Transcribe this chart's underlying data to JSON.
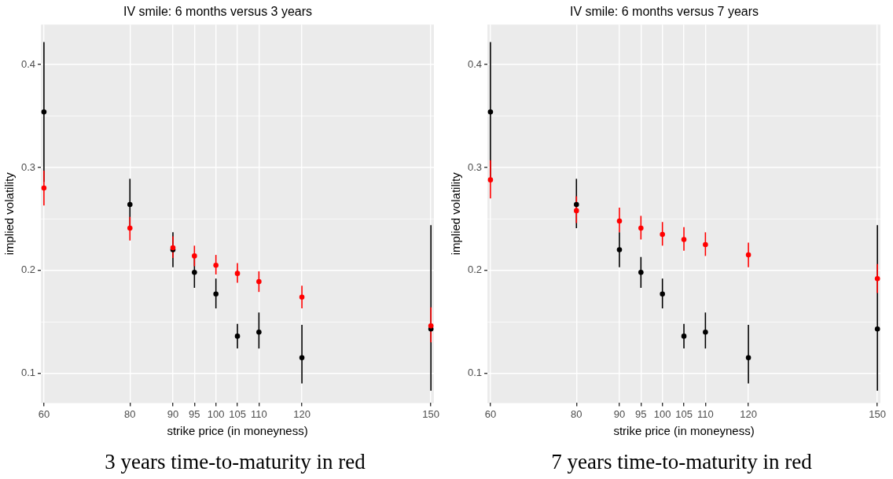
{
  "chart_data": [
    {
      "type": "scatter",
      "title": "IV smile: 6 months versus 3 years",
      "xlabel": "strike price (in moneyness)",
      "ylabel": "implied volatility",
      "annotations": [
        "3 years time-to-maturity in red"
      ],
      "x": [
        60,
        80,
        90,
        95,
        100,
        105,
        110,
        120,
        150
      ],
      "xlim": [
        59.3,
        150.7
      ],
      "xticks": [
        60,
        80,
        90,
        95,
        100,
        105,
        110,
        120,
        150
      ],
      "ylim": [
        0.071,
        0.439
      ],
      "yticks": [
        0.1,
        {
          "value": 0.15,
          "label": null
        },
        0.2,
        {
          "value": 0.25,
          "label": null
        },
        0.3,
        {
          "value": 0.35,
          "label": null
        },
        0.4
      ],
      "grid": true,
      "legend": false,
      "marker": "circle",
      "series": [
        {
          "color": "#000000",
          "values": [
            0.354,
            0.264,
            0.22,
            0.198,
            0.177,
            0.136,
            0.14,
            0.115,
            0.143
          ],
          "errors": [
            [
              0.286,
              0.422
            ],
            [
              0.241,
              0.289
            ],
            [
              0.203,
              0.237
            ],
            [
              0.183,
              0.213
            ],
            [
              0.163,
              0.192
            ],
            [
              0.124,
              0.148
            ],
            [
              0.124,
              0.159
            ],
            [
              0.09,
              0.147
            ],
            [
              0.083,
              0.244
            ]
          ]
        },
        {
          "color": "#ff0000",
          "values": [
            0.28,
            0.241,
            0.222,
            0.214,
            0.205,
            0.197,
            0.189,
            0.174,
            0.146
          ],
          "errors": [
            [
              0.263,
              0.297
            ],
            [
              0.229,
              0.252
            ],
            [
              0.212,
              0.233
            ],
            [
              0.204,
              0.224
            ],
            [
              0.196,
              0.215
            ],
            [
              0.188,
              0.207
            ],
            [
              0.179,
              0.199
            ],
            [
              0.163,
              0.185
            ],
            [
              0.13,
              0.164
            ]
          ]
        }
      ]
    },
    {
      "type": "scatter",
      "title": "IV smile: 6 months versus 7 years",
      "xlabel": "strike price (in moneyness)",
      "ylabel": "implied volatility",
      "annotations": [
        "7 years time-to-maturity in red"
      ],
      "x": [
        60,
        80,
        90,
        95,
        100,
        105,
        110,
        120,
        150
      ],
      "xlim": [
        59.3,
        150.7
      ],
      "xticks": [
        60,
        80,
        90,
        95,
        100,
        105,
        110,
        120,
        150
      ],
      "ylim": [
        0.071,
        0.439
      ],
      "yticks": [
        0.1,
        {
          "value": 0.15,
          "label": null
        },
        0.2,
        {
          "value": 0.25,
          "label": null
        },
        0.3,
        {
          "value": 0.35,
          "label": null
        },
        0.4
      ],
      "grid": true,
      "legend": false,
      "marker": "circle",
      "series": [
        {
          "color": "#000000",
          "values": [
            0.354,
            0.264,
            0.22,
            0.198,
            0.177,
            0.136,
            0.14,
            0.115,
            0.143
          ],
          "errors": [
            [
              0.286,
              0.422
            ],
            [
              0.241,
              0.289
            ],
            [
              0.203,
              0.237
            ],
            [
              0.183,
              0.213
            ],
            [
              0.163,
              0.192
            ],
            [
              0.124,
              0.148
            ],
            [
              0.124,
              0.159
            ],
            [
              0.09,
              0.147
            ],
            [
              0.083,
              0.244
            ]
          ]
        },
        {
          "color": "#ff0000",
          "values": [
            0.288,
            0.258,
            0.248,
            0.241,
            0.235,
            0.23,
            0.225,
            0.215,
            0.192
          ],
          "errors": [
            [
              0.27,
              0.307
            ],
            [
              0.246,
              0.272
            ],
            [
              0.237,
              0.261
            ],
            [
              0.23,
              0.253
            ],
            [
              0.224,
              0.247
            ],
            [
              0.219,
              0.242
            ],
            [
              0.214,
              0.237
            ],
            [
              0.203,
              0.227
            ],
            [
              0.178,
              0.206
            ]
          ]
        }
      ]
    }
  ]
}
